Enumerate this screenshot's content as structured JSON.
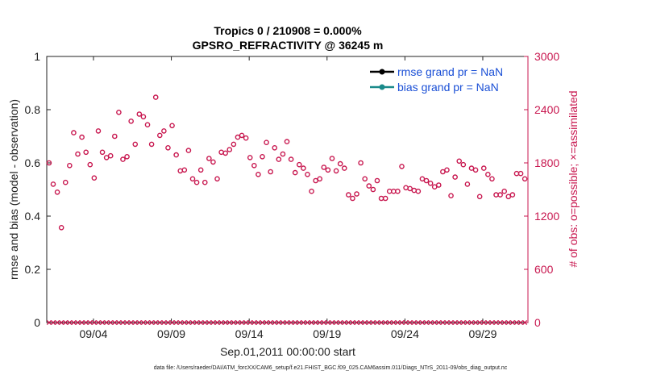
{
  "chart_data": {
    "type": "scatter",
    "title": "Tropics 0 / 210908 = 0.000%",
    "subtitle": "GPSRO_REFRACTIVITY @ 36245 m",
    "xlabel": "Sep.01,2011 00:00:00 start",
    "ylabel": "rmse and bias (model - observation)",
    "y2label": "# of obs: o=possible; ×=assimilated",
    "xlim": [
      0,
      30.9
    ],
    "ylim": [
      0,
      1
    ],
    "y2lim": [
      0,
      3000
    ],
    "x_ticks": [
      3,
      8,
      13,
      18,
      23,
      28
    ],
    "x_tick_labels": [
      "09/04",
      "09/09",
      "09/14",
      "09/19",
      "09/24",
      "09/29"
    ],
    "y_ticks": [
      "0",
      "0.2",
      "0.4",
      "0.6",
      "0.8",
      "1"
    ],
    "y2_ticks": [
      "0",
      "600",
      "1200",
      "1800",
      "2400",
      "3000"
    ],
    "legend": [
      {
        "label": "rmse grand pr = NaN",
        "color": "#000000"
      },
      {
        "label": "bias grand pr = NaN",
        "color": "#1a8a8a"
      }
    ],
    "series": [
      {
        "name": "possible obs",
        "axis": "right",
        "marker": "circle",
        "color": "#c8174f",
        "values": [
          1800,
          1560,
          1470,
          1070,
          1580,
          1770,
          2140,
          1900,
          2090,
          1920,
          1780,
          1630,
          2160,
          1920,
          1860,
          1880,
          2100,
          2370,
          1840,
          1870,
          2270,
          2010,
          2350,
          2320,
          2230,
          2010,
          2540,
          2110,
          2160,
          1970,
          2220,
          1890,
          1710,
          1720,
          1940,
          1620,
          1580,
          1720,
          1580,
          1850,
          1810,
          1620,
          1920,
          1910,
          1950,
          2010,
          2090,
          2110,
          2080,
          1860,
          1770,
          1670,
          1870,
          2030,
          1700,
          1970,
          1840,
          1900,
          2040,
          1840,
          1690,
          1780,
          1740,
          1670,
          1480,
          1600,
          1620,
          1750,
          1720,
          1850,
          1710,
          1790,
          1740,
          1440,
          1400,
          1450,
          1800,
          1620,
          1540,
          1500,
          1600,
          1400,
          1400,
          1480,
          1480,
          1480,
          1760,
          1520,
          1510,
          1490,
          1480,
          1620,
          1600,
          1570,
          1530,
          1550,
          1700,
          1720,
          1430,
          1640,
          1820,
          1780,
          1560,
          1740,
          1720,
          1420,
          1740,
          1670,
          1620,
          1440,
          1440,
          1480,
          1420,
          1440,
          1680,
          1680,
          1620
        ],
        "note": "values sampled roughly every 0.25 days; x computed uniformly across xlim"
      },
      {
        "name": "assimilated obs",
        "axis": "right",
        "marker": "x",
        "color": "#c8174f",
        "values_constant": 0
      }
    ]
  },
  "footnote": "data file: /Users/raeder/DAI/ATM_forcXX/CAM6_setup/f.e21.FHIST_BGC.f09_025.CAM6assim.011/Diags_NTrS_2011-09/obs_diag_output.nc"
}
